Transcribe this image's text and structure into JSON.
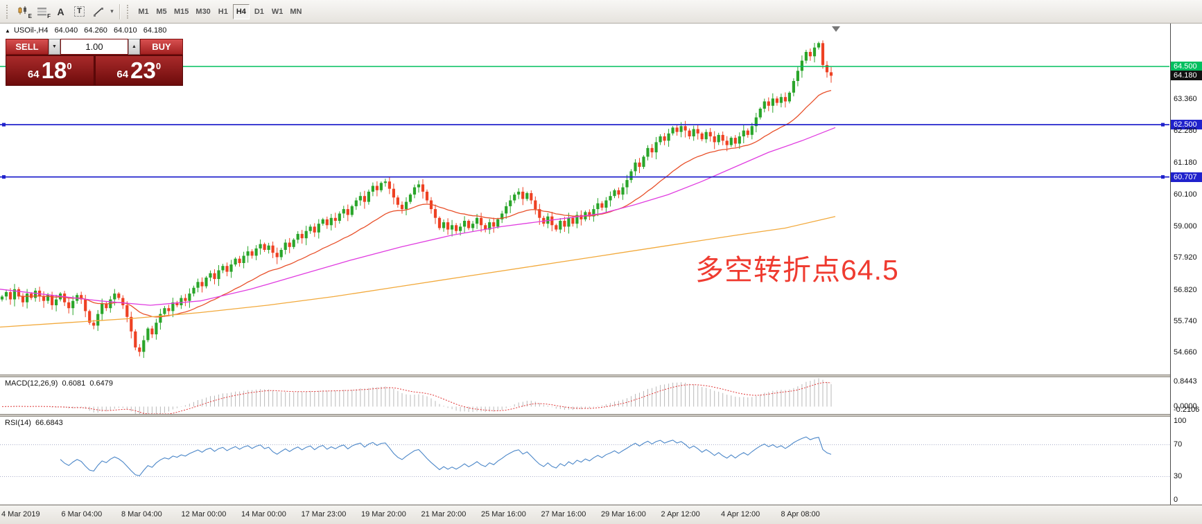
{
  "toolbar": {
    "timeframes": [
      "M1",
      "M5",
      "M15",
      "M30",
      "H1",
      "H4",
      "D1",
      "W1",
      "MN"
    ],
    "active_timeframe": "H4",
    "icon_letters": {
      "e": "E",
      "f": "F",
      "a": "A",
      "t": "T"
    }
  },
  "icons": {
    "caret": "▾",
    "spin_down": "▼",
    "spin_up": "▲"
  },
  "chart": {
    "info": {
      "marker": "▲",
      "symbol": "USOil-,H4",
      "open": "64.040",
      "high": "64.260",
      "low": "64.010",
      "close": "64.180"
    },
    "trade_panel": {
      "sell_label": "SELL",
      "buy_label": "BUY",
      "volume": "1.00",
      "sell_price": {
        "prefix": "64",
        "big": "18",
        "sup": "0"
      },
      "buy_price": {
        "prefix": "64",
        "big": "23",
        "sup": "0"
      }
    },
    "annotation": "多空转折点64.5",
    "levels": [
      {
        "price": 64.5,
        "color": "level_green",
        "width": 1.6,
        "handles": false
      },
      {
        "price": 62.5,
        "color": "level_blue",
        "width": 1.8,
        "handles": true
      },
      {
        "price": 60.707,
        "color": "level_blue",
        "width": 1.8,
        "handles": true
      }
    ],
    "price_axis": [
      {
        "text": "64.500",
        "p": 64.5,
        "kind": "green"
      },
      {
        "text": "64.180",
        "p": 64.18,
        "kind": "black"
      },
      {
        "text": "63.360",
        "p": 63.36,
        "kind": "plain"
      },
      {
        "text": "62.500",
        "p": 62.5,
        "kind": "blue"
      },
      {
        "text": "62.280",
        "p": 62.28,
        "kind": "plain"
      },
      {
        "text": "61.180",
        "p": 61.18,
        "kind": "plain"
      },
      {
        "text": "60.707",
        "p": 60.707,
        "kind": "blue"
      },
      {
        "text": "60.100",
        "p": 60.1,
        "kind": "plain"
      },
      {
        "text": "59.000",
        "p": 59.0,
        "kind": "plain"
      },
      {
        "text": "57.920",
        "p": 57.92,
        "kind": "plain"
      },
      {
        "text": "56.820",
        "p": 56.82,
        "kind": "plain"
      },
      {
        "text": "55.740",
        "p": 55.74,
        "kind": "plain"
      },
      {
        "text": "54.660",
        "p": 54.66,
        "kind": "plain"
      }
    ]
  },
  "macd": {
    "title": "MACD(12,26,9)",
    "value_main": "0.6081",
    "value_signal": "0.6479",
    "params": [
      12,
      26,
      9
    ],
    "scale_max": 0.8443,
    "scale_min": -0.2106,
    "axis": [
      {
        "text": "0.8443",
        "v": 0.8443
      },
      {
        "text": "0.0000",
        "v": 0
      },
      {
        "text": "-0.2106",
        "v": -0.2106
      }
    ]
  },
  "rsi": {
    "title": "RSI(14)",
    "value": "66.6843",
    "period": 14,
    "levels": [
      70,
      30
    ],
    "axis": [
      {
        "text": "100",
        "v": 100
      },
      {
        "text": "70",
        "v": 70
      },
      {
        "text": "30",
        "v": 30
      },
      {
        "text": "0",
        "v": 0
      }
    ]
  },
  "colors": {
    "up": "#2aa52a",
    "down": "#ee4123",
    "ma_fast": "#e8502a",
    "ma_mid": "#e03ce0",
    "ma_slow": "#f2a93b",
    "level_green": "#00bf5f",
    "level_blue": "#2022cc",
    "tag_green": "#00bf5f",
    "tag_blue": "#2022cc",
    "tag_black": "#111111",
    "macd_hist": "#b9b9b9",
    "macd_signal": "#e03535",
    "rsi_line": "#4a86c8",
    "annotation": "#ef3b30"
  },
  "chart_data": {
    "type": "candlestick",
    "symbol": "USOil-",
    "timeframe": "H4",
    "y_axis": {
      "min": 53.9,
      "max": 65.9
    },
    "ma_fast_period": 26,
    "closes": [
      56.6,
      56.75,
      56.5,
      56.85,
      56.6,
      56.4,
      56.7,
      56.55,
      56.8,
      56.6,
      56.45,
      56.65,
      56.3,
      56.5,
      56.7,
      56.4,
      56.2,
      56.45,
      56.65,
      56.5,
      56.1,
      55.7,
      55.6,
      56.0,
      56.35,
      56.2,
      56.5,
      56.7,
      56.55,
      56.3,
      55.9,
      55.4,
      54.85,
      54.7,
      55.1,
      55.5,
      55.3,
      55.7,
      56.0,
      56.2,
      56.1,
      56.4,
      56.3,
      56.55,
      56.45,
      56.7,
      56.9,
      57.1,
      56.95,
      57.25,
      57.4,
      57.2,
      57.5,
      57.65,
      57.45,
      57.7,
      57.9,
      57.75,
      58.0,
      58.15,
      58.0,
      58.25,
      58.4,
      58.2,
      58.35,
      58.1,
      57.95,
      58.2,
      58.45,
      58.3,
      58.55,
      58.75,
      58.6,
      58.85,
      59.0,
      58.8,
      59.1,
      59.25,
      59.05,
      59.3,
      59.2,
      59.45,
      59.6,
      59.4,
      59.7,
      59.9,
      60.05,
      59.85,
      60.2,
      60.4,
      60.25,
      60.5,
      60.55,
      60.3,
      60.0,
      59.75,
      59.6,
      59.85,
      60.1,
      60.35,
      60.45,
      60.2,
      59.9,
      59.6,
      59.3,
      58.95,
      59.15,
      58.9,
      59.05,
      58.85,
      59.0,
      59.2,
      58.95,
      59.1,
      59.3,
      59.05,
      58.9,
      59.15,
      59.0,
      59.25,
      59.45,
      59.7,
      59.9,
      60.1,
      60.2,
      59.95,
      60.15,
      59.9,
      59.6,
      59.3,
      59.1,
      59.35,
      59.05,
      58.9,
      59.2,
      59.0,
      59.3,
      59.1,
      59.4,
      59.25,
      59.5,
      59.35,
      59.6,
      59.8,
      59.65,
      59.9,
      60.05,
      60.25,
      60.1,
      60.35,
      60.6,
      60.9,
      61.2,
      61.05,
      61.4,
      61.7,
      61.55,
      61.9,
      62.1,
      61.95,
      62.2,
      62.4,
      62.25,
      62.45,
      62.3,
      62.1,
      62.35,
      62.2,
      62.0,
      62.25,
      62.1,
      61.9,
      62.15,
      61.95,
      61.8,
      62.05,
      61.85,
      62.1,
      62.3,
      62.15,
      62.45,
      62.75,
      63.05,
      63.3,
      63.15,
      63.4,
      63.25,
      63.45,
      63.3,
      63.6,
      64.0,
      64.35,
      64.7,
      65.0,
      64.85,
      65.15,
      65.3,
      64.55,
      64.3,
      64.18
    ],
    "ma_mid_points": [
      [
        0,
        56.85
      ],
      [
        0.06,
        56.65
      ],
      [
        0.12,
        56.45
      ],
      [
        0.18,
        56.3
      ],
      [
        0.24,
        56.45
      ],
      [
        0.3,
        56.85
      ],
      [
        0.36,
        57.35
      ],
      [
        0.42,
        57.85
      ],
      [
        0.48,
        58.3
      ],
      [
        0.54,
        58.7
      ],
      [
        0.6,
        59.0
      ],
      [
        0.64,
        59.15
      ],
      [
        0.68,
        59.3
      ],
      [
        0.72,
        59.45
      ],
      [
        0.76,
        59.75
      ],
      [
        0.8,
        60.1
      ],
      [
        0.84,
        60.55
      ],
      [
        0.88,
        61.05
      ],
      [
        0.92,
        61.55
      ],
      [
        0.96,
        61.95
      ],
      [
        1.0,
        62.4
      ]
    ],
    "ma_slow_points": [
      [
        0,
        55.55
      ],
      [
        0.08,
        55.7
      ],
      [
        0.16,
        55.85
      ],
      [
        0.24,
        56.05
      ],
      [
        0.32,
        56.3
      ],
      [
        0.4,
        56.6
      ],
      [
        0.48,
        56.95
      ],
      [
        0.56,
        57.3
      ],
      [
        0.64,
        57.65
      ],
      [
        0.72,
        58.0
      ],
      [
        0.8,
        58.35
      ],
      [
        0.88,
        58.7
      ],
      [
        0.94,
        58.95
      ],
      [
        1.0,
        59.35
      ]
    ],
    "x_axis_labels": [
      "4 Mar 2019",
      "6 Mar 04:00",
      "8 Mar 04:00",
      "12 Mar 00:00",
      "14 Mar 00:00",
      "17 Mar 23:00",
      "19 Mar 20:00",
      "21 Mar 20:00",
      "25 Mar 16:00",
      "27 Mar 16:00",
      "29 Mar 16:00",
      "2 Apr 12:00",
      "4 Apr 12:00",
      "8 Apr 08:00"
    ]
  }
}
